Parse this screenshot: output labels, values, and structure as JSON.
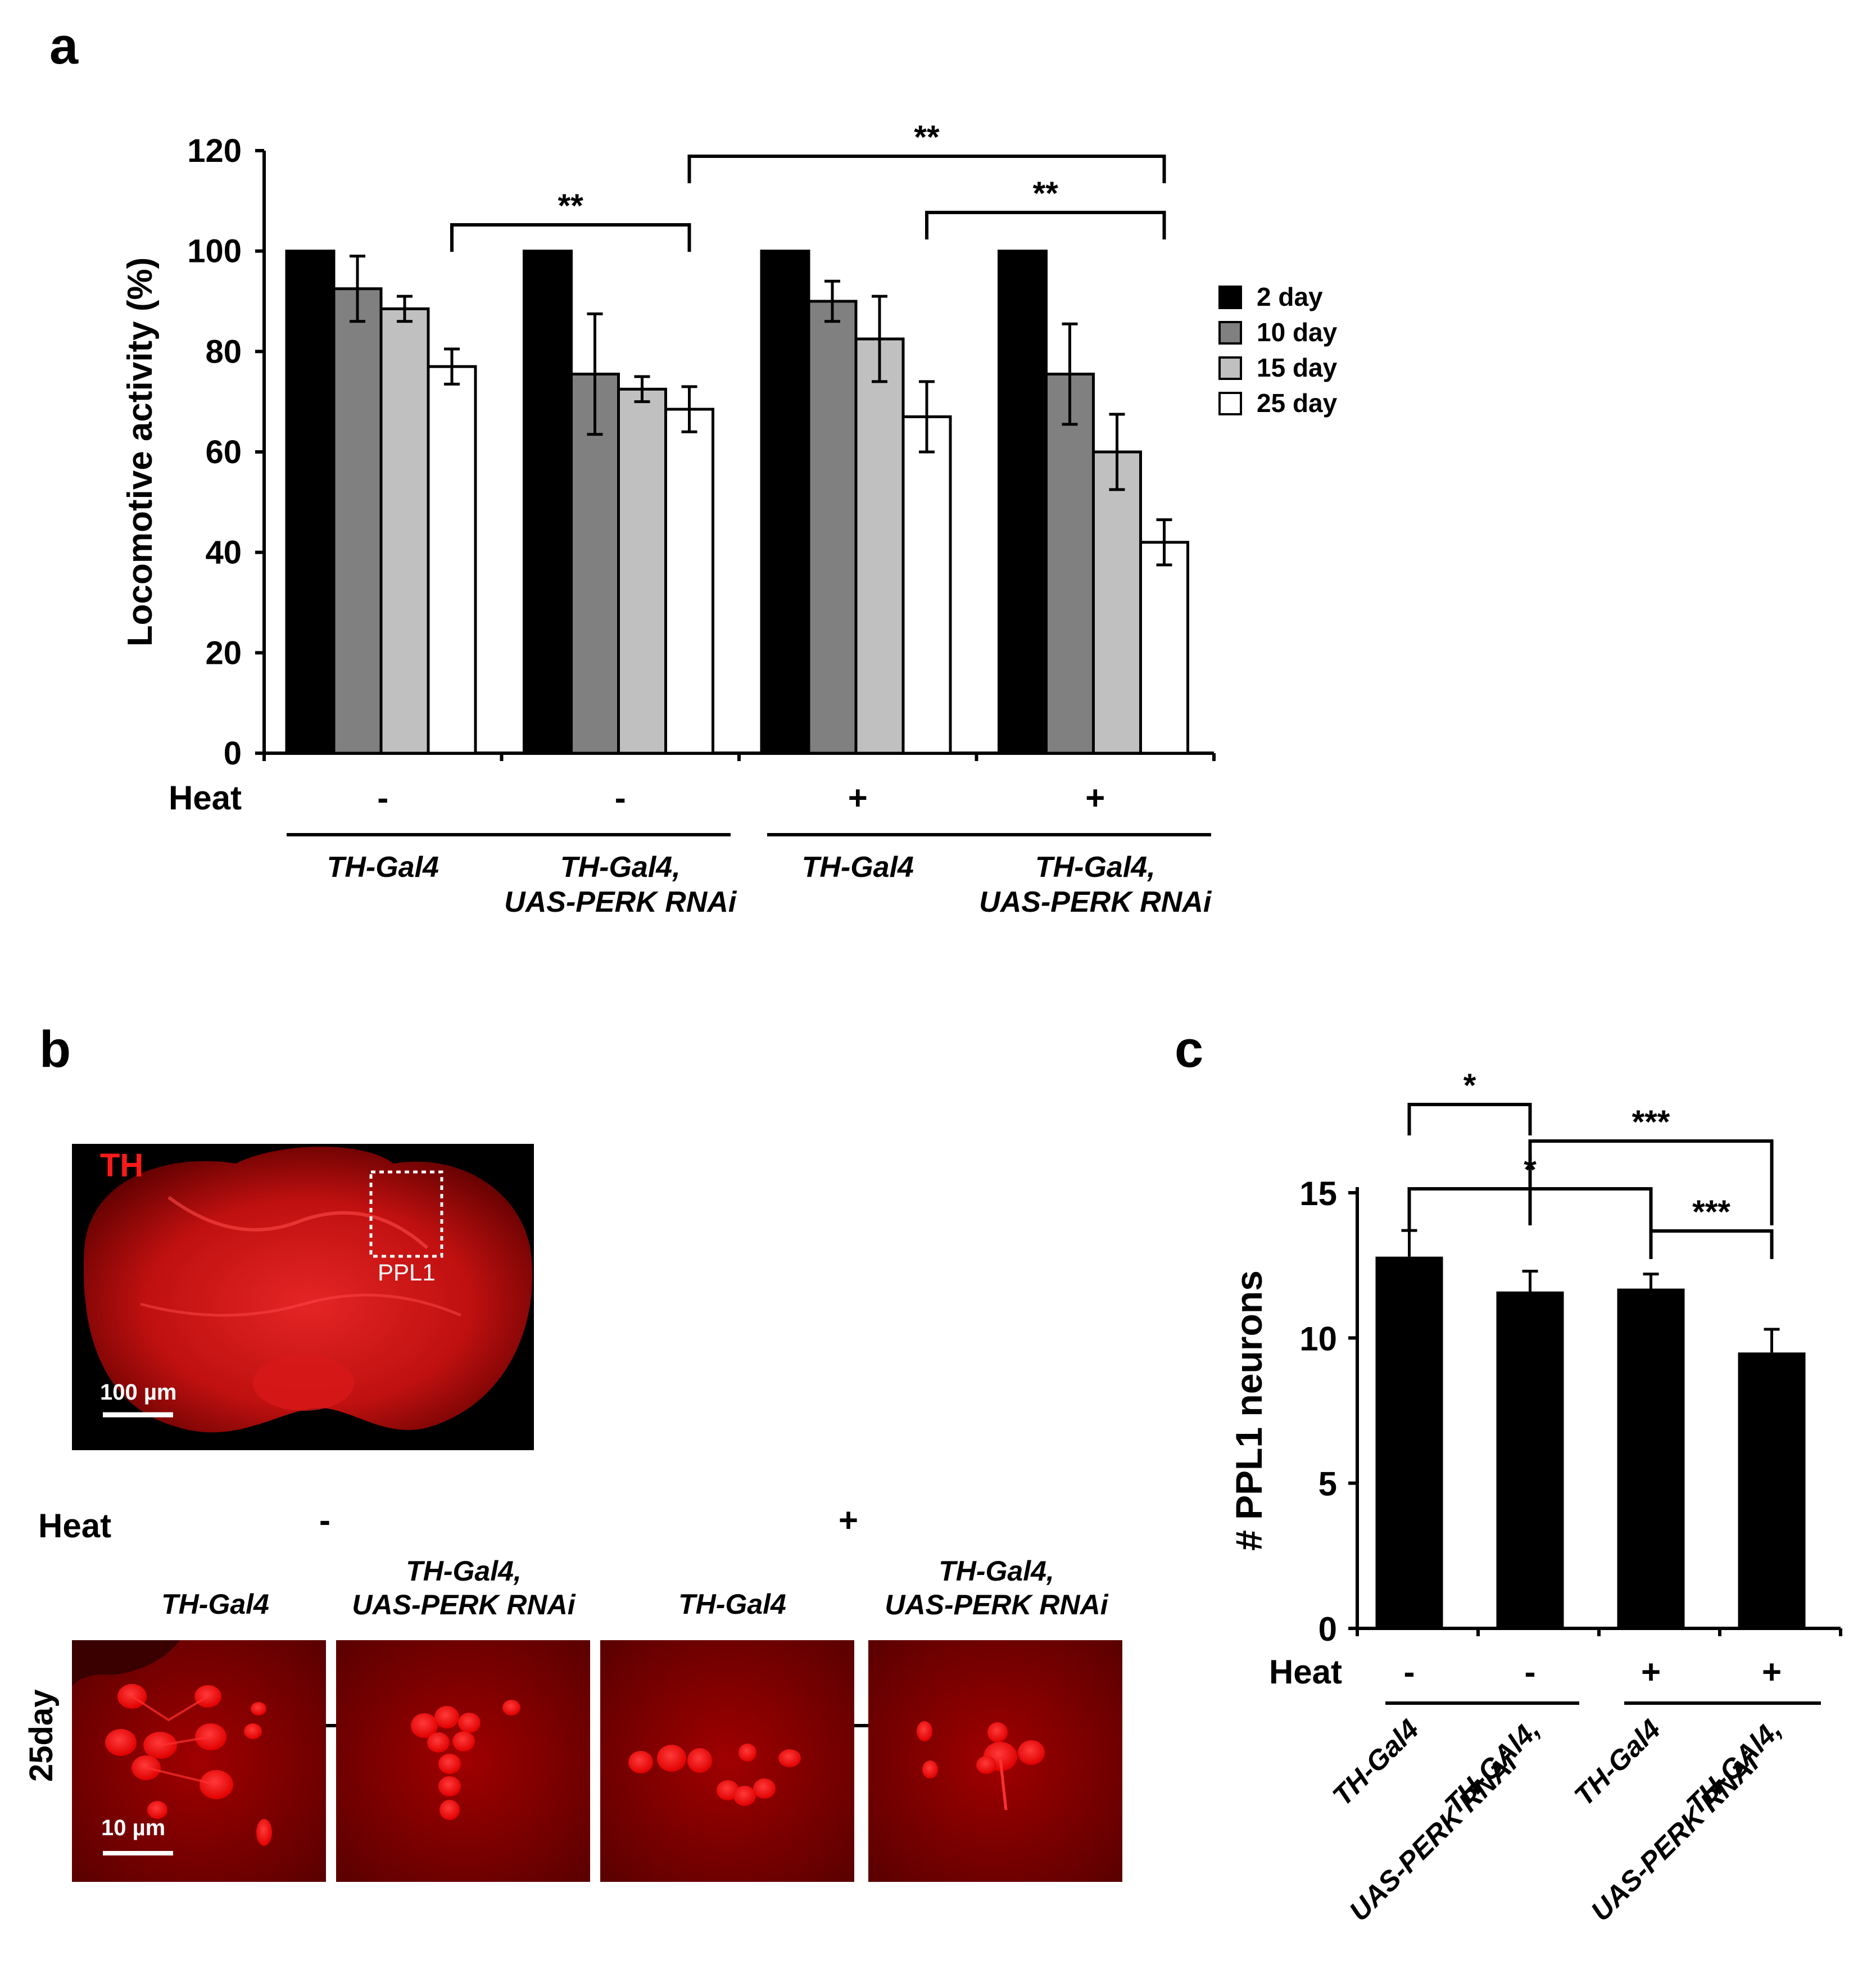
{
  "panels": {
    "a": "a",
    "b": "b",
    "c": "c"
  },
  "chart_data": [
    {
      "panel": "a",
      "type": "bar",
      "ylabel": "Locomotive activity (%)",
      "ylim": [
        0,
        120
      ],
      "yticks": [
        "0",
        "20",
        "40",
        "60",
        "80",
        "100",
        "120"
      ],
      "groups": [
        {
          "heat": "-",
          "genotype": [
            "TH-Gal4"
          ]
        },
        {
          "heat": "-",
          "genotype": [
            "TH-Gal4,",
            "UAS-PERK RNAi"
          ]
        },
        {
          "heat": "+",
          "genotype": [
            "TH-Gal4"
          ]
        },
        {
          "heat": "+",
          "genotype": [
            "TH-Gal4,",
            "UAS-PERK RNAi"
          ]
        }
      ],
      "heat_label": "Heat",
      "series": [
        {
          "name": "2 day",
          "color": "#000000",
          "values": [
            100,
            100,
            100,
            100
          ],
          "errors": [
            0,
            0,
            0,
            0
          ]
        },
        {
          "name": "10 day",
          "color": "#808080",
          "values": [
            92.5,
            75.5,
            90,
            75.5
          ],
          "errors": [
            6.5,
            12,
            4,
            10
          ]
        },
        {
          "name": "15 day",
          "color": "#c0c0c0",
          "values": [
            88.5,
            72.5,
            82.5,
            60
          ],
          "errors": [
            2.5,
            2.5,
            8.5,
            7.5
          ]
        },
        {
          "name": "25 day",
          "color": "#ffffff",
          "values": [
            77,
            68.5,
            67,
            42
          ],
          "errors": [
            3.5,
            4.5,
            7,
            4.5
          ]
        }
      ],
      "legend_position": "right",
      "significance": [
        {
          "label": "**",
          "from_group": 0,
          "from_series": 3,
          "to_group": 1,
          "to_series": 3
        },
        {
          "label": "**",
          "from_group": 1,
          "from_series": 3,
          "to_group": 3,
          "to_series": 3
        },
        {
          "label": "**",
          "from_group": 2,
          "from_series": 3,
          "to_group": 3,
          "to_series": 3
        }
      ]
    },
    {
      "panel": "c",
      "type": "bar",
      "ylabel": "# PPL1 neurons",
      "ylim": [
        0,
        15
      ],
      "yticks": [
        "0",
        "5",
        "10",
        "15"
      ],
      "heat_label": "Heat",
      "categories": [
        {
          "heat": "-",
          "genotype": [
            "TH-Gal4"
          ]
        },
        {
          "heat": "-",
          "genotype": [
            "TH-GAl4,",
            "UAS-PERK RNAi"
          ]
        },
        {
          "heat": "+",
          "genotype": [
            "TH-Gal4"
          ]
        },
        {
          "heat": "+",
          "genotype": [
            "TH-GAl4,",
            "UAS-PERK RNAi"
          ]
        }
      ],
      "values": [
        12.8,
        11.6,
        11.7,
        9.5
      ],
      "errors": [
        0.9,
        0.7,
        0.5,
        0.8
      ],
      "color": "#000000",
      "significance": [
        {
          "label": "*",
          "from": 0,
          "to": 1
        },
        {
          "label": "***",
          "from": 1,
          "to": 3
        },
        {
          "label": "*",
          "from": 0,
          "to": 2
        },
        {
          "label": "***",
          "from": 2,
          "to": 3
        }
      ]
    }
  ],
  "panel_b": {
    "overview": {
      "stain_label": "TH",
      "roi_label": "PPL1",
      "scale_label": "100 µm"
    },
    "heat_label": "Heat",
    "heat_groups": [
      "-",
      "+"
    ],
    "row_label": "25day",
    "columns": [
      {
        "genotype": [
          "TH-Gal4"
        ]
      },
      {
        "genotype": [
          "TH-Gal4,",
          "UAS-PERK RNAi"
        ]
      },
      {
        "genotype": [
          "TH-Gal4"
        ]
      },
      {
        "genotype": [
          "TH-Gal4,",
          "UAS-PERK RNAi"
        ]
      }
    ],
    "scale_label": "10 µm"
  }
}
